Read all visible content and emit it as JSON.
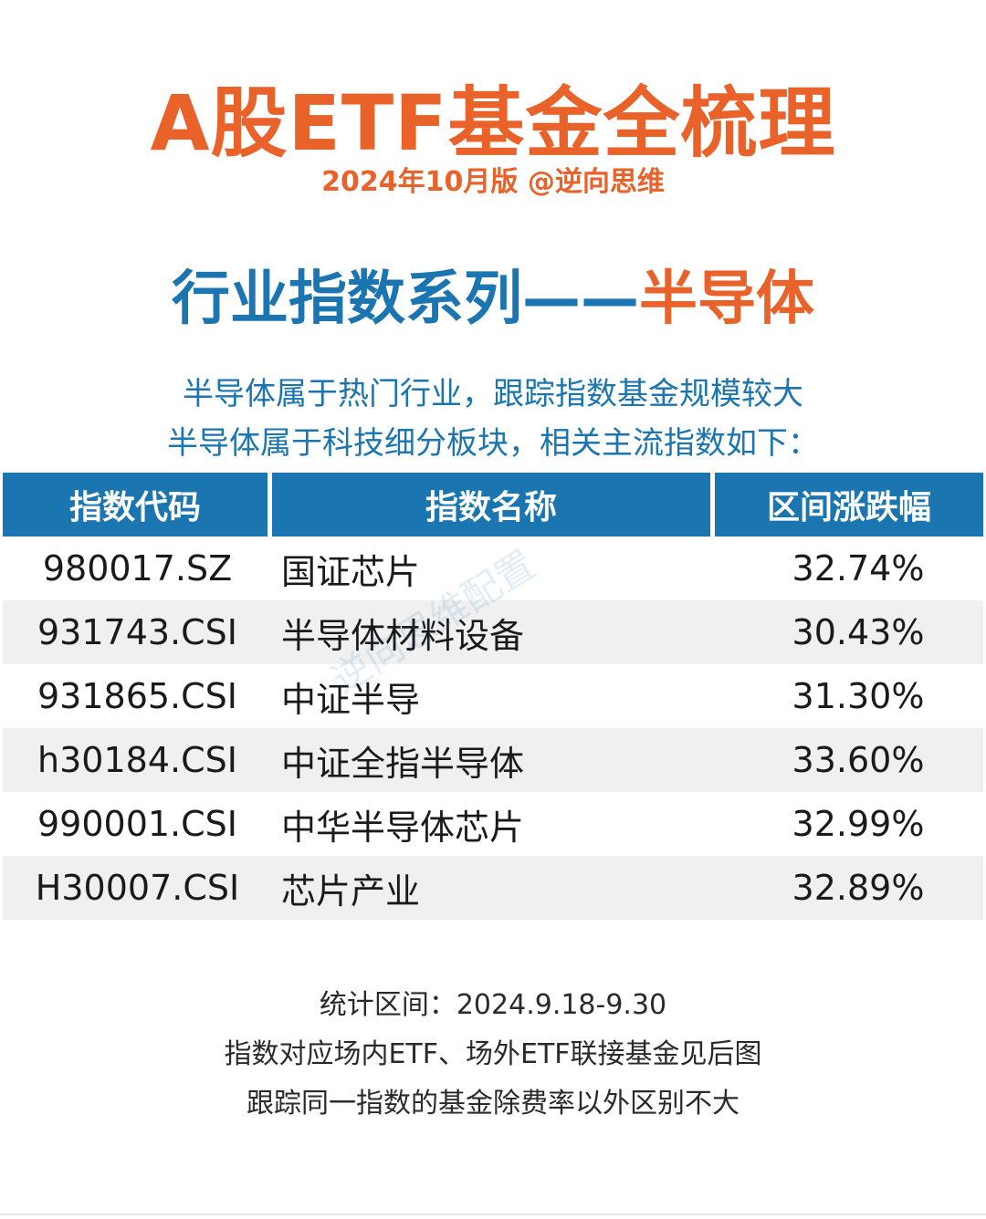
{
  "header": {
    "title": "A股ETF基金全梳理",
    "subtitle": "2024年10月版 @逆向思维"
  },
  "section": {
    "title_prefix": "行业指数系列——",
    "title_highlight": "半导体"
  },
  "intro": {
    "line1": "半导体属于热门行业，跟踪指数基金规模较大",
    "line2": "半导体属于科技细分板块，相关主流指数如下："
  },
  "table": {
    "columns": [
      "指数代码",
      "指数名称",
      "区间涨跌幅"
    ],
    "rows": [
      {
        "code": "980017.SZ",
        "name": "国证芯片",
        "change": "32.74%"
      },
      {
        "code": "931743.CSI",
        "name": "半导体材料设备",
        "change": "30.43%"
      },
      {
        "code": "931865.CSI",
        "name": "中证半导",
        "change": "31.30%"
      },
      {
        "code": "h30184.CSI",
        "name": "中证全指半导体",
        "change": "33.60%"
      },
      {
        "code": "990001.CSI",
        "name": "中华半导体芯片",
        "change": "32.99%"
      },
      {
        "code": "H30007.CSI",
        "name": "芯片产业",
        "change": "32.89%"
      }
    ]
  },
  "watermark": "逆向思维配置",
  "notes": {
    "line1": "统计区间：2024.9.18-9.30",
    "line2": "指数对应场内ETF、场外ETF联接基金见后图",
    "line3": "跟踪同一指数的基金除费率以外区别不大"
  },
  "colors": {
    "orange": "#e8622a",
    "blue": "#1a75b0",
    "stripe": "#f0f0f0"
  }
}
